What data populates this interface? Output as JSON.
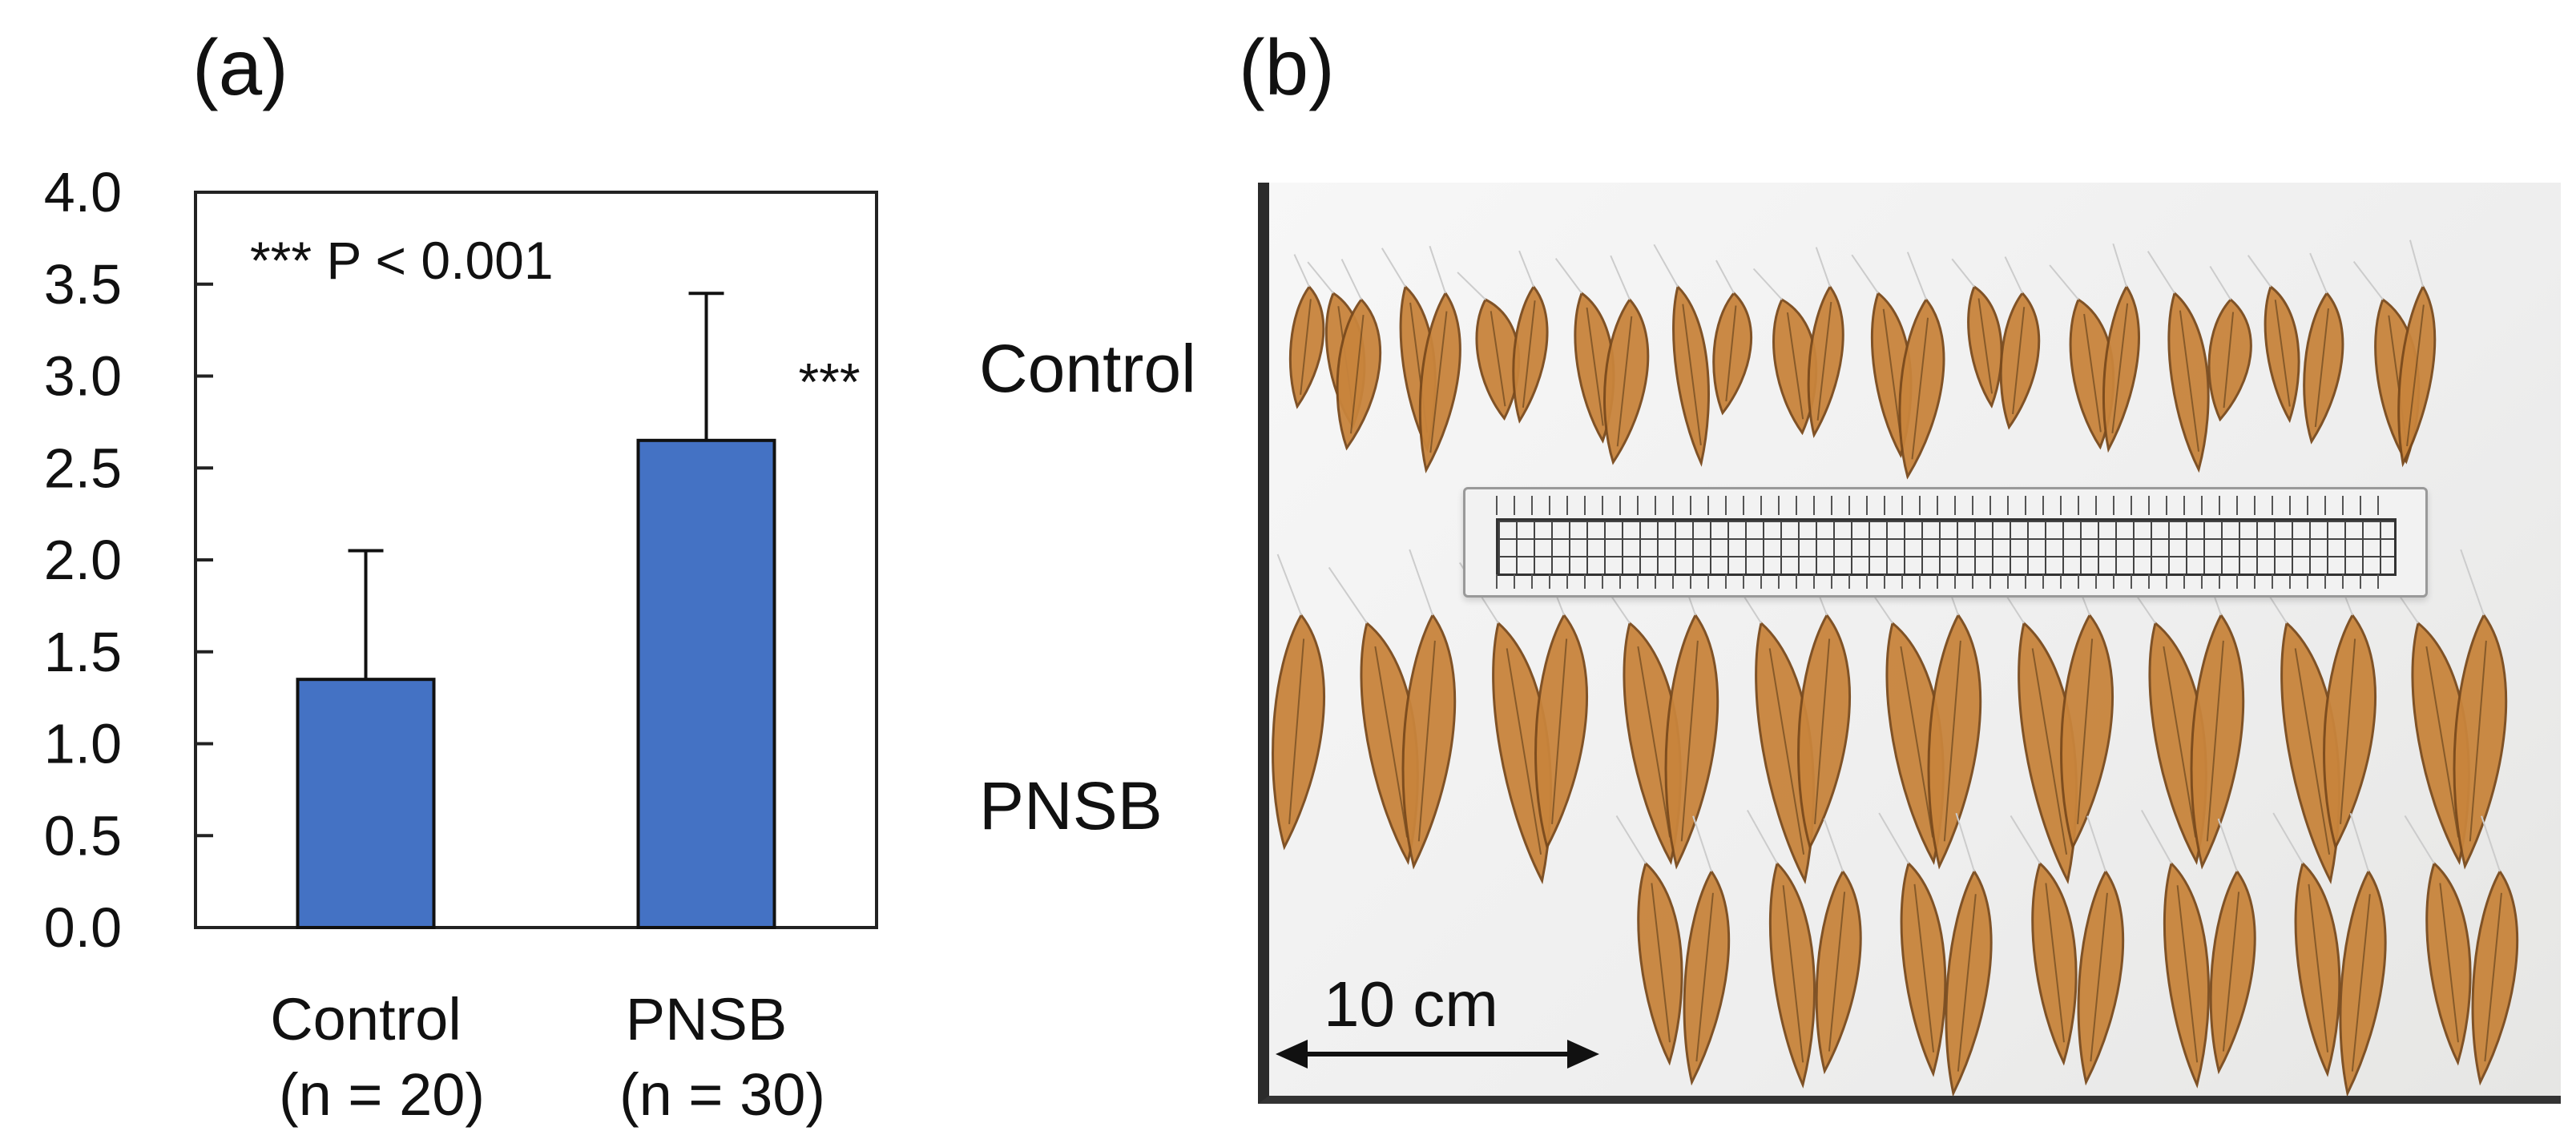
{
  "panels": {
    "a": "(a)",
    "b": "(b)"
  },
  "chart_data": {
    "type": "bar",
    "categories": [
      "Control",
      "PNSB"
    ],
    "category_sublabels": [
      "(n = 20)",
      "(n = 30)"
    ],
    "values": [
      1.35,
      2.65
    ],
    "error_bars": [
      0.7,
      0.8
    ],
    "ylim": [
      0,
      4.0
    ],
    "yticks": [
      "0.0",
      "0.5",
      "1.0",
      "1.5",
      "2.0",
      "2.5",
      "3.0",
      "3.5",
      "4.0"
    ],
    "significance_label": "***",
    "annotation": "*** P < 0.001",
    "bar_color": "#4472c4"
  },
  "photo": {
    "row_labels": [
      "Control",
      "PNSB"
    ],
    "scale_bar_label": "10 cm",
    "shrimp_color": "#c8843c"
  }
}
